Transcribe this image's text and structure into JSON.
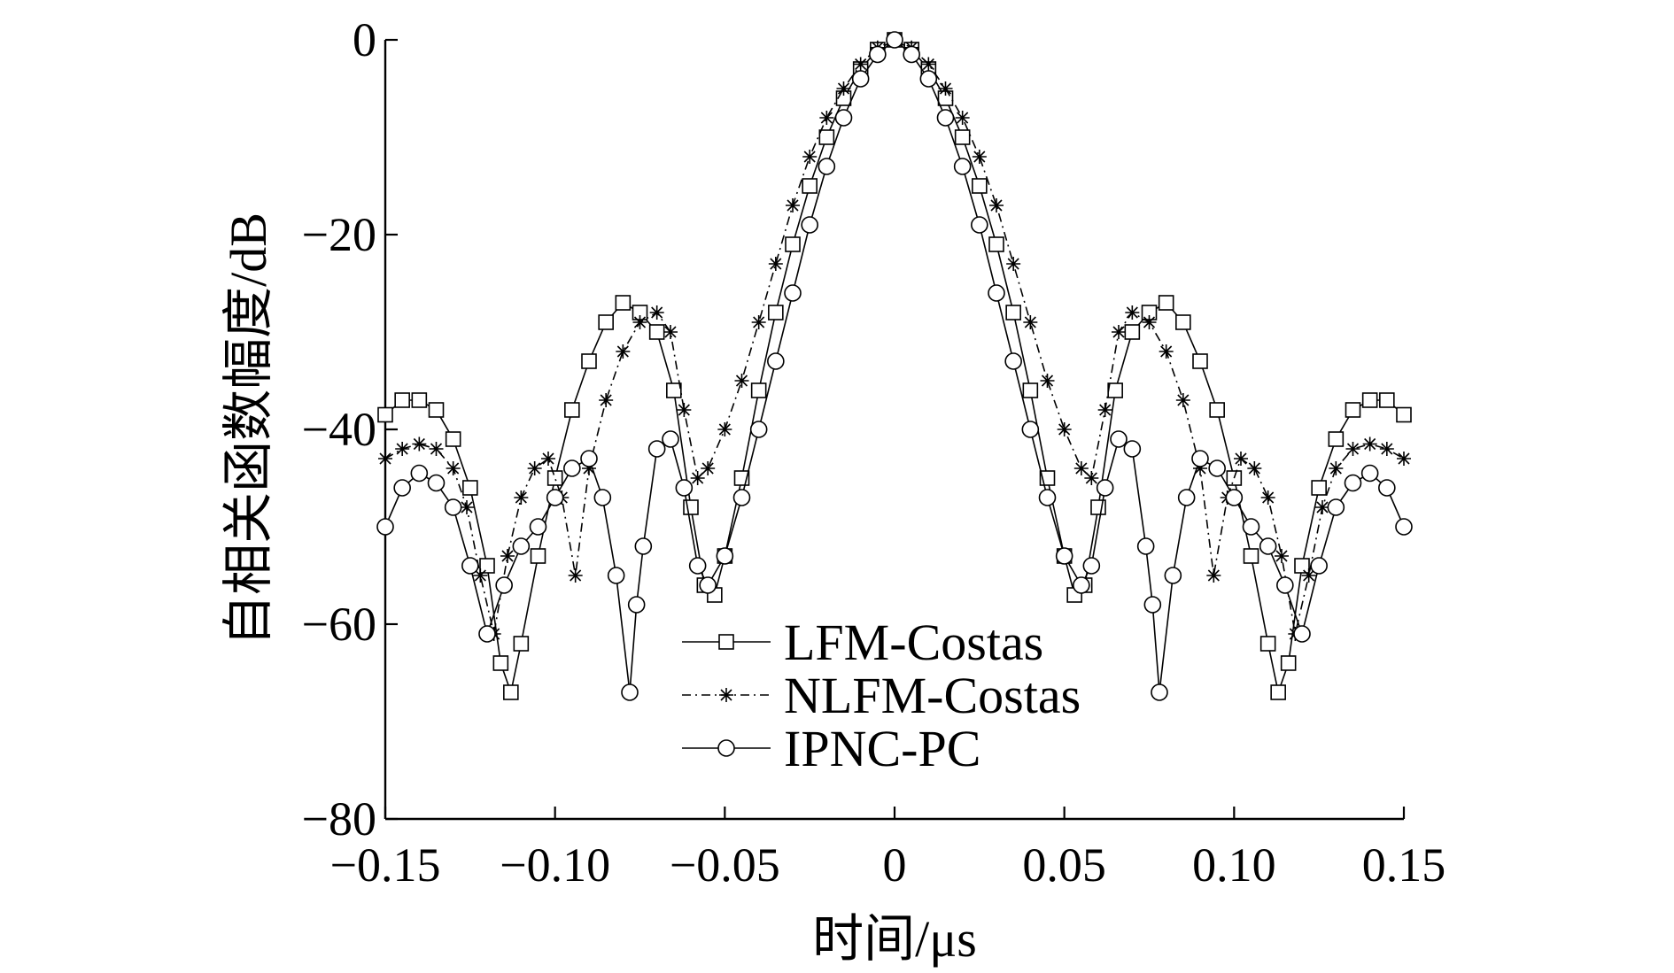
{
  "chart_data": {
    "type": "line",
    "xlabel": "时间/μs",
    "ylabel": "自相关函数幅度/dB",
    "xlim": [
      -0.15,
      0.15
    ],
    "ylim": [
      -80,
      0
    ],
    "x_ticks": [
      -0.15,
      -0.1,
      -0.05,
      0,
      0.05,
      0.1,
      0.15
    ],
    "x_tick_labels": [
      "−0.15",
      "−0.10",
      "−0.05",
      "0",
      "0.05",
      "0.10",
      "0.15"
    ],
    "y_ticks": [
      0,
      -20,
      -40,
      -60,
      -80
    ],
    "y_tick_labels": [
      "0",
      "−20",
      "−40",
      "−60",
      "−80"
    ],
    "grid": false,
    "legend_position": "lower-center",
    "series": [
      {
        "name": "LFM-Costas",
        "marker": "square",
        "line_style": "solid",
        "color": "#000000",
        "x": [
          0,
          0.005,
          0.01,
          0.015,
          0.02,
          0.025,
          0.03,
          0.035,
          0.04,
          0.045,
          0.05,
          0.053,
          0.056,
          0.06,
          0.065,
          0.07,
          0.075,
          0.08,
          0.085,
          0.09,
          0.095,
          0.1,
          0.105,
          0.11,
          0.113,
          0.116,
          0.12,
          0.125,
          0.13,
          0.135,
          0.14,
          0.145,
          0.15
        ],
        "y": [
          0,
          -1,
          -3,
          -6,
          -10,
          -15,
          -21,
          -28,
          -36,
          -45,
          -53,
          -57,
          -56,
          -48,
          -36,
          -30,
          -28,
          -27,
          -29,
          -33,
          -38,
          -45,
          -53,
          -62,
          -67,
          -64,
          -54,
          -46,
          -41,
          -38,
          -37,
          -37,
          -38.5
        ]
      },
      {
        "name": "NLFM-Costas",
        "marker": "asterisk",
        "line_style": "dashdot",
        "color": "#000000",
        "x": [
          0,
          0.005,
          0.01,
          0.015,
          0.02,
          0.025,
          0.03,
          0.035,
          0.04,
          0.045,
          0.05,
          0.055,
          0.058,
          0.062,
          0.066,
          0.07,
          0.075,
          0.08,
          0.085,
          0.09,
          0.094,
          0.098,
          0.102,
          0.106,
          0.11,
          0.114,
          0.118,
          0.122,
          0.126,
          0.13,
          0.135,
          0.14,
          0.145,
          0.15
        ],
        "y": [
          0,
          -0.8,
          -2.5,
          -5,
          -8,
          -12,
          -17,
          -23,
          -29,
          -35,
          -40,
          -44,
          -45,
          -38,
          -30,
          -28,
          -29,
          -32,
          -37,
          -44,
          -55,
          -47,
          -43,
          -44,
          -47,
          -53,
          -61,
          -55,
          -48,
          -44,
          -42,
          -41.5,
          -42,
          -43
        ]
      },
      {
        "name": "IPNC-PC",
        "marker": "circle",
        "line_style": "solid",
        "color": "#000000",
        "x": [
          0,
          0.005,
          0.01,
          0.015,
          0.02,
          0.025,
          0.03,
          0.035,
          0.04,
          0.045,
          0.05,
          0.055,
          0.058,
          0.062,
          0.066,
          0.07,
          0.074,
          0.076,
          0.078,
          0.082,
          0.086,
          0.09,
          0.095,
          0.1,
          0.105,
          0.11,
          0.115,
          0.12,
          0.125,
          0.13,
          0.135,
          0.14,
          0.145,
          0.15
        ],
        "y": [
          0,
          -1.5,
          -4,
          -8,
          -13,
          -19,
          -26,
          -33,
          -40,
          -47,
          -53,
          -56,
          -54,
          -46,
          -41,
          -42,
          -52,
          -58,
          -67,
          -55,
          -47,
          -43,
          -44,
          -47,
          -50,
          -52,
          -56,
          -61,
          -54,
          -48,
          -45.5,
          -44.5,
          -46,
          -50
        ]
      }
    ]
  }
}
